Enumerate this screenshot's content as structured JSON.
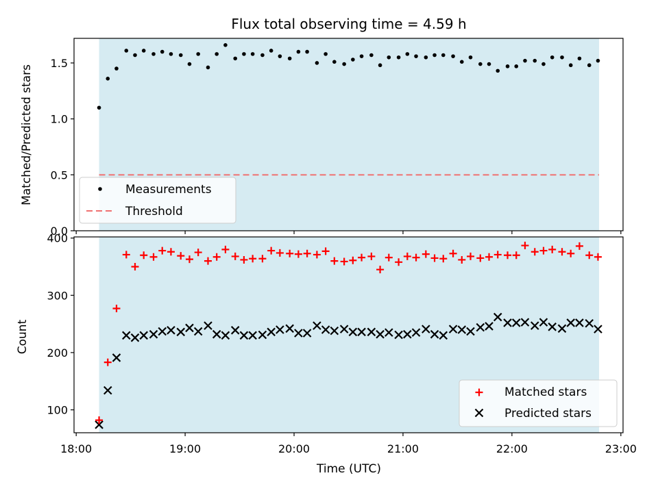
{
  "title": "Flux total observing time = 4.59 h",
  "colors": {
    "shade": "#add8e6",
    "measurement": "#000000",
    "threshold": "#f07070",
    "matched": "#ff0000",
    "predicted": "#000000"
  },
  "chart_data": [
    {
      "type": "scatter",
      "panel": "top",
      "ylabel": "Matched/Predicted stars",
      "ylim": [
        0,
        1.72
      ],
      "yticks": [
        0.0,
        0.5,
        1.0,
        1.5
      ],
      "ytick_labels": [
        "0.0",
        "0.5",
        "1.0",
        "1.5"
      ],
      "xlim": [
        17.98,
        23.02
      ],
      "shaded_span": [
        18.21,
        22.8
      ],
      "threshold": 0.5,
      "legend_placement": "lower-left",
      "legend": {
        "measurements": "Measurements",
        "threshold": "Threshold"
      },
      "series": [
        {
          "name": "Measurements",
          "x": [
            18.21,
            18.29,
            18.37,
            18.46,
            18.54,
            18.62,
            18.71,
            18.79,
            18.87,
            18.96,
            19.04,
            19.12,
            19.21,
            19.29,
            19.37,
            19.46,
            19.54,
            19.62,
            19.71,
            19.79,
            19.87,
            19.96,
            20.04,
            20.12,
            20.21,
            20.29,
            20.37,
            20.46,
            20.54,
            20.62,
            20.71,
            20.79,
            20.87,
            20.96,
            21.04,
            21.12,
            21.21,
            21.29,
            21.37,
            21.46,
            21.54,
            21.62,
            21.71,
            21.79,
            21.87,
            21.96,
            22.04,
            22.12,
            22.21,
            22.29,
            22.37,
            22.46,
            22.54,
            22.62,
            22.71,
            22.79
          ],
          "y": [
            1.1,
            1.36,
            1.45,
            1.61,
            1.57,
            1.61,
            1.58,
            1.6,
            1.58,
            1.57,
            1.49,
            1.58,
            1.46,
            1.58,
            1.66,
            1.54,
            1.58,
            1.58,
            1.57,
            1.61,
            1.56,
            1.54,
            1.6,
            1.6,
            1.5,
            1.58,
            1.51,
            1.49,
            1.53,
            1.56,
            1.57,
            1.48,
            1.55,
            1.55,
            1.58,
            1.56,
            1.55,
            1.57,
            1.57,
            1.56,
            1.51,
            1.55,
            1.49,
            1.49,
            1.43,
            1.47,
            1.47,
            1.52,
            1.52,
            1.49,
            1.55,
            1.55,
            1.48,
            1.54,
            1.48,
            1.52
          ]
        }
      ]
    },
    {
      "type": "scatter",
      "panel": "bottom",
      "xlabel": "Time (UTC)",
      "ylabel": "Count",
      "ylim": [
        60,
        402
      ],
      "yticks": [
        100,
        200,
        300,
        400
      ],
      "ytick_labels": [
        "100",
        "200",
        "300",
        "400"
      ],
      "xlim": [
        17.98,
        23.02
      ],
      "xticks": [
        18,
        19,
        20,
        21,
        22,
        23
      ],
      "xtick_labels": [
        "18:00",
        "19:00",
        "20:00",
        "21:00",
        "22:00",
        "23:00"
      ],
      "shaded_span": [
        18.21,
        22.8
      ],
      "legend_placement": "lower-right",
      "series": [
        {
          "name": "Matched stars",
          "marker": "plus",
          "x": [
            18.21,
            18.29,
            18.37,
            18.46,
            18.54,
            18.62,
            18.71,
            18.79,
            18.87,
            18.96,
            19.04,
            19.12,
            19.21,
            19.29,
            19.37,
            19.46,
            19.54,
            19.62,
            19.71,
            19.79,
            19.87,
            19.96,
            20.04,
            20.12,
            20.21,
            20.29,
            20.37,
            20.46,
            20.54,
            20.62,
            20.71,
            20.79,
            20.87,
            20.96,
            21.04,
            21.12,
            21.21,
            21.29,
            21.37,
            21.46,
            21.54,
            21.62,
            21.71,
            21.79,
            21.87,
            21.96,
            22.04,
            22.12,
            22.21,
            22.29,
            22.37,
            22.46,
            22.54,
            22.62,
            22.71,
            22.79
          ],
          "y": [
            82,
            183,
            277,
            371,
            350,
            370,
            367,
            378,
            376,
            369,
            363,
            375,
            360,
            367,
            380,
            368,
            362,
            364,
            364,
            378,
            374,
            373,
            372,
            373,
            371,
            377,
            360,
            359,
            361,
            366,
            368,
            345,
            366,
            358,
            368,
            366,
            372,
            365,
            364,
            373,
            362,
            368,
            365,
            367,
            371,
            370,
            370,
            387,
            376,
            378,
            380,
            376,
            373,
            386,
            370,
            367
          ]
        },
        {
          "name": "Predicted stars",
          "marker": "x",
          "x": [
            18.21,
            18.29,
            18.37,
            18.46,
            18.54,
            18.62,
            18.71,
            18.79,
            18.87,
            18.96,
            19.04,
            19.12,
            19.21,
            19.29,
            19.37,
            19.46,
            19.54,
            19.62,
            19.71,
            19.79,
            19.87,
            19.96,
            20.04,
            20.12,
            20.21,
            20.29,
            20.37,
            20.46,
            20.54,
            20.62,
            20.71,
            20.79,
            20.87,
            20.96,
            21.04,
            21.12,
            21.21,
            21.29,
            21.37,
            21.46,
            21.54,
            21.62,
            21.71,
            21.79,
            21.87,
            21.96,
            22.04,
            22.12,
            22.21,
            22.29,
            22.37,
            22.46,
            22.54,
            22.62,
            22.71,
            22.79
          ],
          "y": [
            74,
            134,
            191,
            230,
            226,
            230,
            232,
            237,
            239,
            236,
            243,
            237,
            247,
            232,
            230,
            239,
            230,
            230,
            231,
            236,
            240,
            242,
            234,
            234,
            247,
            240,
            238,
            241,
            236,
            236,
            236,
            232,
            235,
            231,
            232,
            235,
            241,
            232,
            230,
            241,
            240,
            237,
            244,
            246,
            262,
            252,
            252,
            253,
            247,
            253,
            245,
            242,
            252,
            252,
            251,
            241
          ]
        }
      ]
    }
  ]
}
